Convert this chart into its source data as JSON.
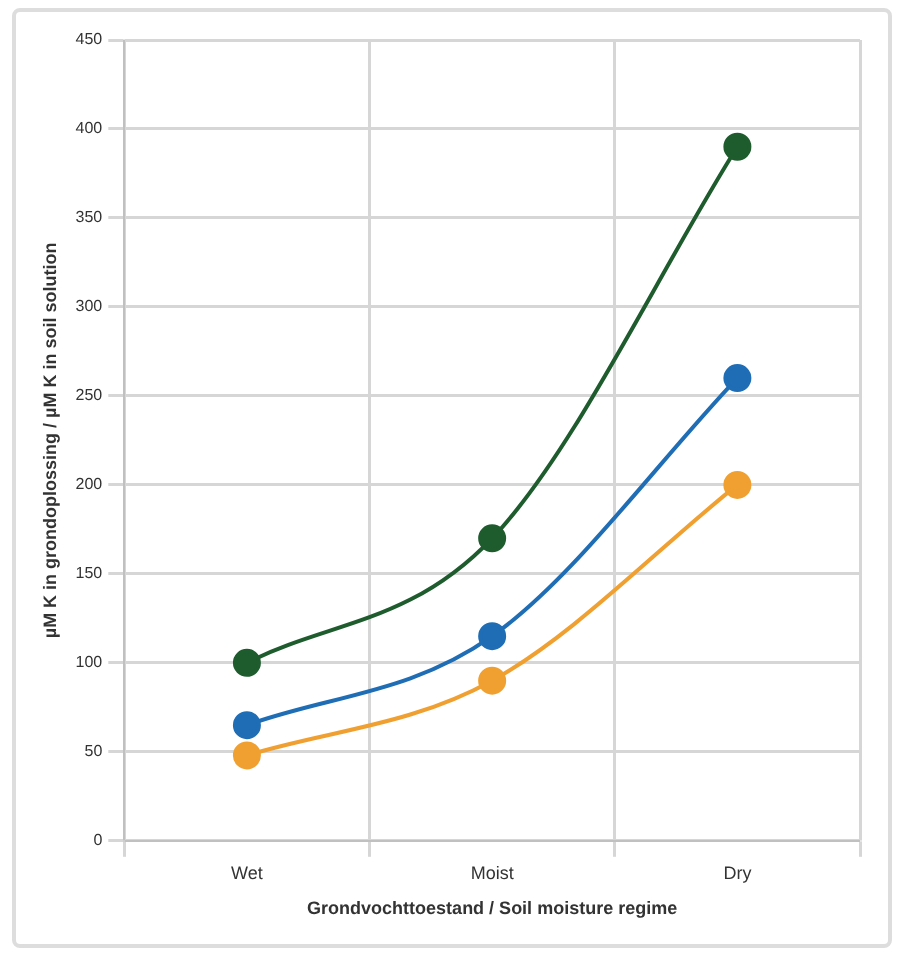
{
  "chart_data": {
    "type": "line",
    "xlabel": "Grondvochttoestand / Soil moisture regime",
    "ylabel": "µM K in grondoplossing / µM K in soil solution",
    "categories": [
      "Wet",
      "Moist",
      "Dry"
    ],
    "series": [
      {
        "color": "#1e5c2e",
        "values": [
          100,
          170,
          390
        ]
      },
      {
        "color": "#1f6db5",
        "values": [
          65,
          115,
          260
        ]
      },
      {
        "color": "#f0a030",
        "values": [
          48,
          90,
          200
        ]
      }
    ],
    "ylim": [
      0,
      450
    ],
    "yticks": [
      0,
      50,
      100,
      150,
      200,
      250,
      300,
      350,
      400,
      450
    ],
    "grid": true,
    "legend": false,
    "marker": "circle",
    "line_style": "solid"
  }
}
